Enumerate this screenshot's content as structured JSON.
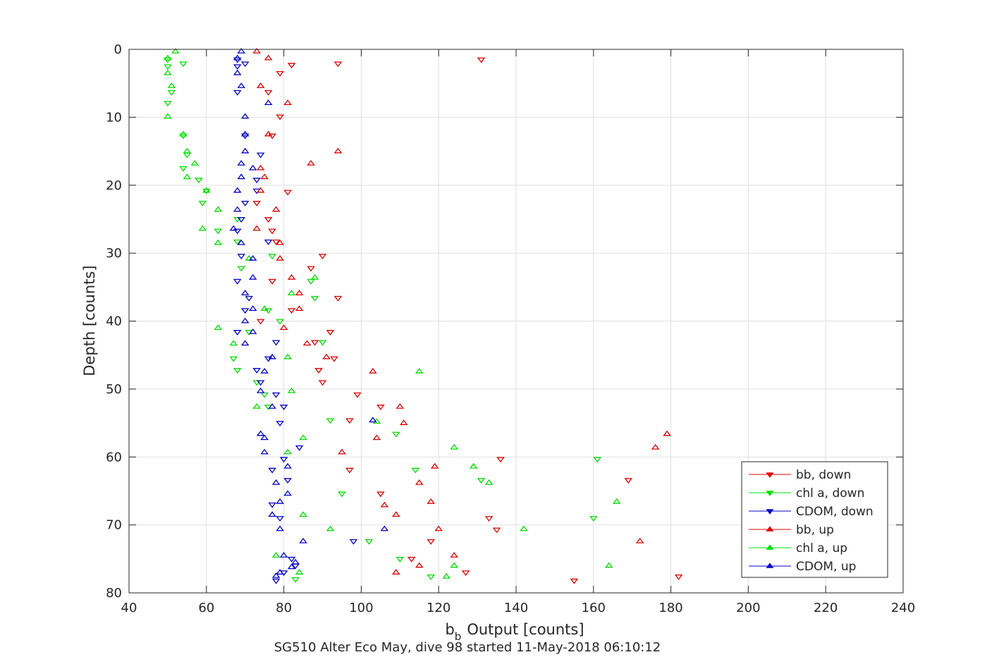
{
  "chart_data": {
    "type": "scatter",
    "title": "",
    "xlabel": "Output [counts]",
    "xlabel_symbol": "b",
    "xlabel_subscript": "b",
    "ylabel": "Depth [counts]",
    "caption": "SG510 Alter Eco May, dive 98 started 11-May-2018 06:10:12",
    "xlim": [
      40,
      240
    ],
    "ylim": [
      0,
      80
    ],
    "y_reversed": true,
    "x_ticks": [
      40,
      60,
      80,
      100,
      120,
      140,
      160,
      180,
      200,
      220,
      240
    ],
    "y_ticks": [
      0,
      10,
      20,
      30,
      40,
      50,
      60,
      70,
      80
    ],
    "grid": true,
    "legend_position": "bottom-right",
    "colors": {
      "red": "#e00000",
      "green": "#00e000",
      "blue": "#0000cc",
      "axis": "#262626",
      "grid": "#e0e0e0"
    },
    "series": [
      {
        "name": "bb, down",
        "marker": "triangle-down",
        "color": "#e00000",
        "points": [
          [
            131,
            1.5
          ],
          [
            94,
            2.1
          ],
          [
            82,
            2.3
          ],
          [
            79,
            3.5
          ],
          [
            76,
            6.3
          ],
          [
            79,
            9.9
          ],
          [
            77,
            12.7
          ],
          [
            81,
            21
          ],
          [
            73,
            22.6
          ],
          [
            76,
            25
          ],
          [
            77,
            26.7
          ],
          [
            78,
            28.3
          ],
          [
            90,
            30.4
          ],
          [
            87,
            32.2
          ],
          [
            77,
            34.1
          ],
          [
            94,
            36.6
          ],
          [
            82,
            38.4
          ],
          [
            74,
            40
          ],
          [
            92,
            41.6
          ],
          [
            88,
            43.1
          ],
          [
            93,
            45.5
          ],
          [
            89,
            47.2
          ],
          [
            90,
            49
          ],
          [
            99,
            50.8
          ],
          [
            105,
            52.6
          ],
          [
            97,
            54.6
          ],
          [
            136,
            60.3
          ],
          [
            97,
            61.9
          ],
          [
            169,
            63.4
          ],
          [
            105,
            65.4
          ],
          [
            133,
            69
          ],
          [
            135,
            70.7
          ],
          [
            118,
            72.4
          ],
          [
            113,
            75
          ],
          [
            127,
            77
          ],
          [
            182,
            77.6
          ],
          [
            155,
            78.2
          ]
        ]
      },
      {
        "name": "chl a, down",
        "marker": "triangle-down",
        "color": "#00e000",
        "points": [
          [
            50,
            1.5
          ],
          [
            54,
            2.1
          ],
          [
            50,
            2.5
          ],
          [
            51,
            6.3
          ],
          [
            50,
            7.9
          ],
          [
            54,
            12.7
          ],
          [
            55,
            15.5
          ],
          [
            54,
            17.5
          ],
          [
            58,
            19.2
          ],
          [
            60,
            20.8
          ],
          [
            59,
            22.6
          ],
          [
            68,
            25
          ],
          [
            63,
            26.7
          ],
          [
            68,
            28.3
          ],
          [
            77,
            30.4
          ],
          [
            69,
            32.2
          ],
          [
            87,
            34.1
          ],
          [
            88,
            36.6
          ],
          [
            76,
            38.4
          ],
          [
            79,
            40
          ],
          [
            71,
            41.6
          ],
          [
            90,
            43.1
          ],
          [
            67,
            45.5
          ],
          [
            68,
            47.2
          ],
          [
            73,
            49
          ],
          [
            75,
            50.8
          ],
          [
            76,
            52.6
          ],
          [
            92,
            54.6
          ],
          [
            109,
            56.6
          ],
          [
            161,
            60.3
          ],
          [
            114,
            61.9
          ],
          [
            131,
            63.4
          ],
          [
            95,
            65.4
          ],
          [
            160,
            69
          ],
          [
            102,
            72.4
          ],
          [
            110,
            75
          ],
          [
            118,
            77.6
          ],
          [
            83,
            78
          ]
        ]
      },
      {
        "name": "CDOM, down",
        "marker": "triangle-down",
        "color": "#0000cc",
        "points": [
          [
            68,
            1.5
          ],
          [
            70,
            2.1
          ],
          [
            68,
            2.5
          ],
          [
            68,
            6.3
          ],
          [
            70,
            12.7
          ],
          [
            74,
            15.5
          ],
          [
            73,
            19.2
          ],
          [
            73,
            20.8
          ],
          [
            70,
            22.6
          ],
          [
            69,
            25
          ],
          [
            68,
            26.7
          ],
          [
            76,
            28.3
          ],
          [
            69,
            30.4
          ],
          [
            68,
            34.1
          ],
          [
            71,
            36.6
          ],
          [
            70,
            38.4
          ],
          [
            68,
            41.6
          ],
          [
            78,
            43.1
          ],
          [
            76,
            45.5
          ],
          [
            73,
            47.2
          ],
          [
            74,
            49
          ],
          [
            78,
            50.8
          ],
          [
            80,
            52.6
          ],
          [
            79,
            55
          ],
          [
            84,
            58.6
          ],
          [
            80,
            60.3
          ],
          [
            77,
            61.9
          ],
          [
            81,
            63.4
          ],
          [
            77,
            67
          ],
          [
            79,
            69
          ],
          [
            98,
            72.4
          ],
          [
            82,
            75
          ],
          [
            83,
            76
          ],
          [
            80,
            77
          ],
          [
            78,
            78.2
          ]
        ]
      },
      {
        "name": "bb, up",
        "marker": "triangle-up",
        "color": "#e00000",
        "points": [
          [
            73,
            0.3
          ],
          [
            76,
            1.3
          ],
          [
            74,
            5.4
          ],
          [
            81,
            7.9
          ],
          [
            76,
            12.5
          ],
          [
            94,
            15
          ],
          [
            87,
            16.8
          ],
          [
            74,
            17.5
          ],
          [
            75,
            18.8
          ],
          [
            74,
            20.8
          ],
          [
            78,
            23.6
          ],
          [
            73,
            26.4
          ],
          [
            79,
            28.5
          ],
          [
            79,
            30.8
          ],
          [
            82,
            33.6
          ],
          [
            84,
            35.9
          ],
          [
            84,
            38.2
          ],
          [
            80,
            41
          ],
          [
            86,
            43.3
          ],
          [
            91,
            45.3
          ],
          [
            103,
            47.4
          ],
          [
            110,
            52.6
          ],
          [
            111,
            55
          ],
          [
            104,
            57.2
          ],
          [
            179,
            56.6
          ],
          [
            176,
            58.6
          ],
          [
            95,
            59.3
          ],
          [
            119,
            61.4
          ],
          [
            115,
            63.8
          ],
          [
            118,
            66.6
          ],
          [
            106,
            67.1
          ],
          [
            109,
            68.5
          ],
          [
            120,
            70.6
          ],
          [
            172,
            72.4
          ],
          [
            124,
            74.5
          ],
          [
            115,
            76
          ],
          [
            109,
            77
          ]
        ]
      },
      {
        "name": "chl a, up",
        "marker": "triangle-up",
        "color": "#00e000",
        "points": [
          [
            52,
            0.3
          ],
          [
            50,
            1.3
          ],
          [
            50,
            3.5
          ],
          [
            51,
            5.4
          ],
          [
            50,
            9.9
          ],
          [
            54,
            12.5
          ],
          [
            55,
            15
          ],
          [
            57,
            16.8
          ],
          [
            55,
            18.8
          ],
          [
            60,
            20.8
          ],
          [
            63,
            23.6
          ],
          [
            59,
            26.4
          ],
          [
            63,
            28.5
          ],
          [
            71,
            30.8
          ],
          [
            88,
            33.6
          ],
          [
            82,
            35.9
          ],
          [
            75,
            38.2
          ],
          [
            63,
            41
          ],
          [
            67,
            43.3
          ],
          [
            81,
            45.3
          ],
          [
            115,
            47.4
          ],
          [
            82,
            50.3
          ],
          [
            73,
            52.6
          ],
          [
            104,
            54.8
          ],
          [
            85,
            57.2
          ],
          [
            124,
            58.6
          ],
          [
            81,
            59.3
          ],
          [
            129,
            61.4
          ],
          [
            133,
            63.8
          ],
          [
            166,
            66.6
          ],
          [
            85,
            68.5
          ],
          [
            92,
            70.6
          ],
          [
            142,
            70.6
          ],
          [
            78,
            74.5
          ],
          [
            124,
            76
          ],
          [
            164,
            76
          ],
          [
            84,
            77
          ],
          [
            122,
            77.6
          ]
        ]
      },
      {
        "name": "CDOM, up",
        "marker": "triangle-up",
        "color": "#0000cc",
        "points": [
          [
            69,
            0.3
          ],
          [
            68,
            1.3
          ],
          [
            68,
            3.5
          ],
          [
            69,
            5.4
          ],
          [
            76,
            7.9
          ],
          [
            70,
            9.9
          ],
          [
            70,
            12.5
          ],
          [
            70,
            15
          ],
          [
            69,
            16.8
          ],
          [
            72,
            17.5
          ],
          [
            69,
            18.8
          ],
          [
            68,
            20.8
          ],
          [
            68,
            23.6
          ],
          [
            67,
            26.4
          ],
          [
            69,
            28.5
          ],
          [
            72,
            30.8
          ],
          [
            72,
            33.6
          ],
          [
            70,
            35.9
          ],
          [
            72,
            38.2
          ],
          [
            70,
            40
          ],
          [
            72,
            41.6
          ],
          [
            70,
            43.3
          ],
          [
            77,
            45.3
          ],
          [
            75,
            47.4
          ],
          [
            74,
            50.3
          ],
          [
            77,
            52.6
          ],
          [
            103,
            54.6
          ],
          [
            74,
            56.6
          ],
          [
            75,
            57.2
          ],
          [
            75,
            59.3
          ],
          [
            81,
            61.4
          ],
          [
            78,
            63.8
          ],
          [
            81,
            65.4
          ],
          [
            79,
            66.6
          ],
          [
            77,
            68.5
          ],
          [
            79,
            70.6
          ],
          [
            106,
            70.6
          ],
          [
            85,
            72.4
          ],
          [
            80,
            74.5
          ],
          [
            83,
            75.5
          ],
          [
            82,
            76.2
          ],
          [
            79,
            77
          ],
          [
            78,
            77.5
          ]
        ]
      }
    ]
  }
}
